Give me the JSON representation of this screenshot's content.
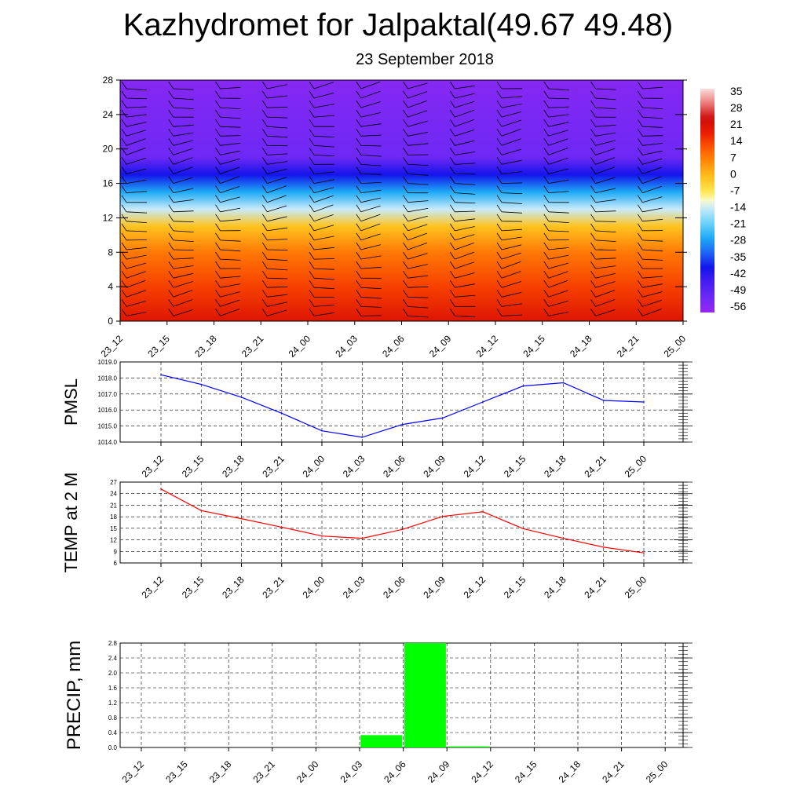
{
  "header": {
    "title": "Kazhydromet for Jalpaktal(49.67 49.48)",
    "subtitle": "23 September 2018"
  },
  "colors": {
    "pmsl_line": "#0000ff",
    "temp_line": "#ff0000",
    "precip_bar": "#00ff00"
  },
  "chart_data": [
    {
      "type": "heatmap",
      "title": "",
      "x_ticks": [
        "23_12",
        "23_15",
        "23_18",
        "23_21",
        "24_00",
        "24_03",
        "24_06",
        "24_09",
        "24_12",
        "24_15",
        "24_18",
        "24_21",
        "25_00"
      ],
      "y_ticks": [
        "0",
        "4",
        "8",
        "12",
        "16",
        "20",
        "24",
        "28"
      ],
      "ylim": [
        0,
        28
      ],
      "colorbar_labels": [
        "35",
        "28",
        "21",
        "14",
        "7",
        "0",
        "-7",
        "-14",
        "-21",
        "-28",
        "-35",
        "-42",
        "-49",
        "-56"
      ],
      "colorbar_range": [
        -63,
        42
      ],
      "temperature_profile": [
        {
          "h": 0,
          "t": 24
        },
        {
          "h": 4,
          "t": 17
        },
        {
          "h": 8,
          "t": 10
        },
        {
          "h": 11,
          "t": 0
        },
        {
          "h": 13,
          "t": -14
        },
        {
          "h": 15,
          "t": -28
        },
        {
          "h": 17,
          "t": -42
        },
        {
          "h": 19,
          "t": -56
        },
        {
          "h": 28,
          "t": -60
        }
      ],
      "wind_barbs": true,
      "grid": false
    },
    {
      "type": "line",
      "ylabel": "PMSL",
      "x": [
        "23_12",
        "23_15",
        "23_18",
        "23_21",
        "24_00",
        "24_03",
        "24_06",
        "24_09",
        "24_12",
        "24_15",
        "24_18",
        "24_21",
        "25_00"
      ],
      "y_ticks": [
        "1014.0",
        "1015.0",
        "1016.0",
        "1017.0",
        "1018.0",
        "1019.0"
      ],
      "ylim": [
        1014,
        1019
      ],
      "series": [
        {
          "values": [
            1018.2,
            1017.6,
            1016.8,
            1015.8,
            1014.7,
            1014.3,
            1015.1,
            1015.5,
            1016.5,
            1017.5,
            1017.7,
            1016.6,
            1016.5
          ]
        }
      ],
      "grid": true
    },
    {
      "type": "line",
      "ylabel": "TEMP at 2 M",
      "x": [
        "23_12",
        "23_15",
        "23_18",
        "23_21",
        "24_00",
        "24_03",
        "24_06",
        "24_09",
        "24_12",
        "24_15",
        "24_18",
        "24_21",
        "25_00"
      ],
      "y_ticks": [
        "6",
        "9",
        "12",
        "15",
        "18",
        "21",
        "24",
        "27"
      ],
      "ylim": [
        6,
        27
      ],
      "series": [
        {
          "values": [
            25.2,
            19.6,
            17.5,
            15.3,
            13.0,
            12.4,
            14.7,
            18.1,
            19.3,
            14.9,
            12.4,
            10.1,
            8.6
          ]
        }
      ],
      "grid": true
    },
    {
      "type": "bar",
      "ylabel": "PRECIP, mm",
      "categories": [
        "23_12",
        "23_15",
        "23_18",
        "23_21",
        "24_00",
        "24_03",
        "24_06",
        "24_09",
        "24_12",
        "24_15",
        "24_18",
        "24_21",
        "25_00"
      ],
      "y_ticks": [
        "0.0",
        "0.4",
        "0.8",
        "1.2",
        "1.6",
        "2.0",
        "2.4",
        "2.8"
      ],
      "ylim": [
        0,
        2.8
      ],
      "values": [
        0,
        0,
        0,
        0,
        0,
        0,
        0.33,
        2.8,
        0.03,
        0,
        0,
        0,
        0
      ],
      "grid": true
    }
  ]
}
